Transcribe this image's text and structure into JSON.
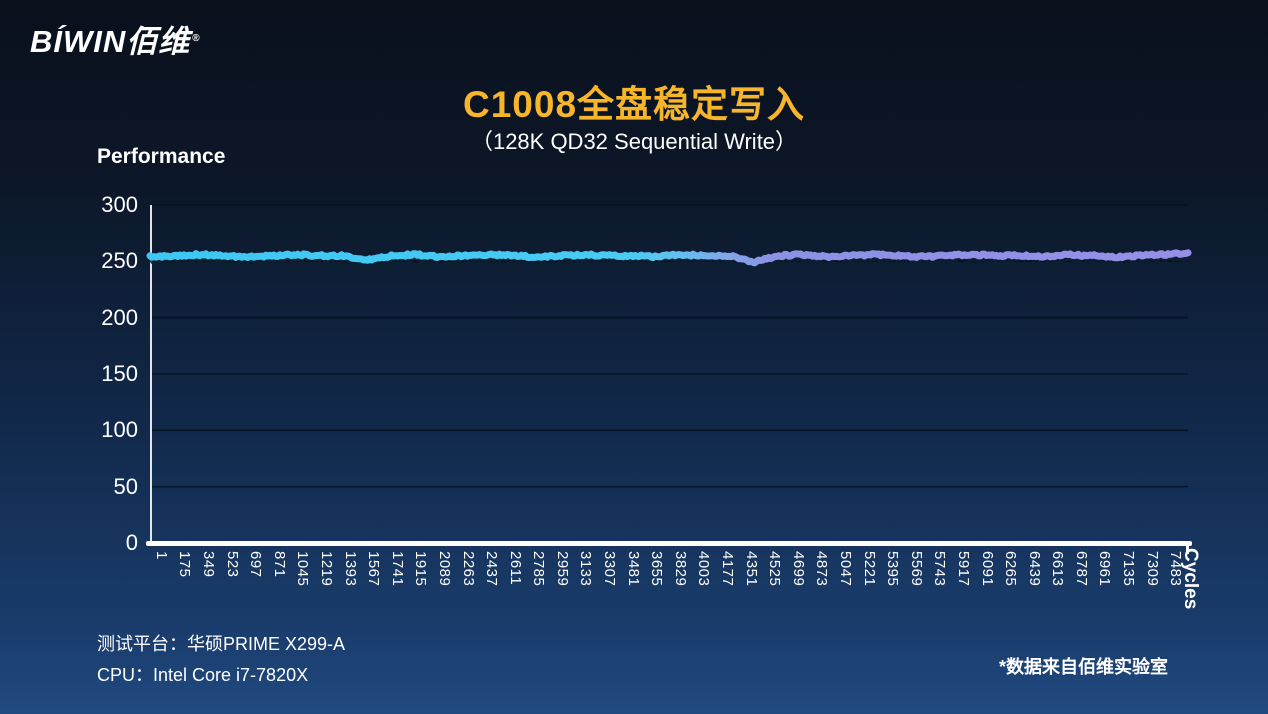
{
  "brand": {
    "logo_text": "BÍWIN佰维",
    "reg_mark": "®"
  },
  "header": {
    "title": "C1008全盘稳定写入",
    "subtitle": "（128K QD32 Sequential Write）"
  },
  "chart_data": {
    "type": "line",
    "title": "C1008全盘稳定写入",
    "subtitle": "（128K QD32 Sequential Write）",
    "ylabel": "Performance",
    "xlabel": "Cycles",
    "ylim": [
      0,
      300
    ],
    "yticks": [
      0,
      50,
      100,
      150,
      200,
      250,
      300
    ],
    "grid": "horizontal dark gridlines",
    "legend": "none",
    "x_tick_labels": [
      "1",
      "175",
      "349",
      "523",
      "697",
      "871",
      "1045",
      "1219",
      "1393",
      "1567",
      "1741",
      "1915",
      "2089",
      "2263",
      "2437",
      "2611",
      "2785",
      "2959",
      "3133",
      "3307",
      "3481",
      "3655",
      "3829",
      "4003",
      "4177",
      "4351",
      "4525",
      "4699",
      "4873",
      "5047",
      "5221",
      "5395",
      "5569",
      "5743",
      "5917",
      "6091",
      "6265",
      "6439",
      "6613",
      "6787",
      "6961",
      "7135",
      "7309",
      "7483"
    ],
    "series": [
      {
        "name": "128K QD32 Sequential Write",
        "baseline": 255,
        "style": "thick gradient line, cyan on left fading to violet on right, with dark jitter noise just below dipping to ~245",
        "color_start": "#3EC7F3",
        "color_end": "#968FE8",
        "values": [
          254,
          255,
          256,
          255,
          254,
          255,
          256,
          255,
          255,
          251,
          255,
          256,
          254,
          255,
          256,
          255,
          254,
          255,
          256,
          255,
          255,
          254,
          256,
          255,
          255,
          249,
          255,
          256,
          254,
          255,
          256,
          255,
          254,
          255,
          256,
          255,
          255,
          254,
          256,
          255,
          254,
          255,
          256,
          257
        ]
      }
    ]
  },
  "footer": {
    "platform": "测试平台：华硕PRIME X299-A",
    "cpu": "CPU：Intel Core i7-7820X",
    "source_note": "*数据来自佰维实验室"
  }
}
